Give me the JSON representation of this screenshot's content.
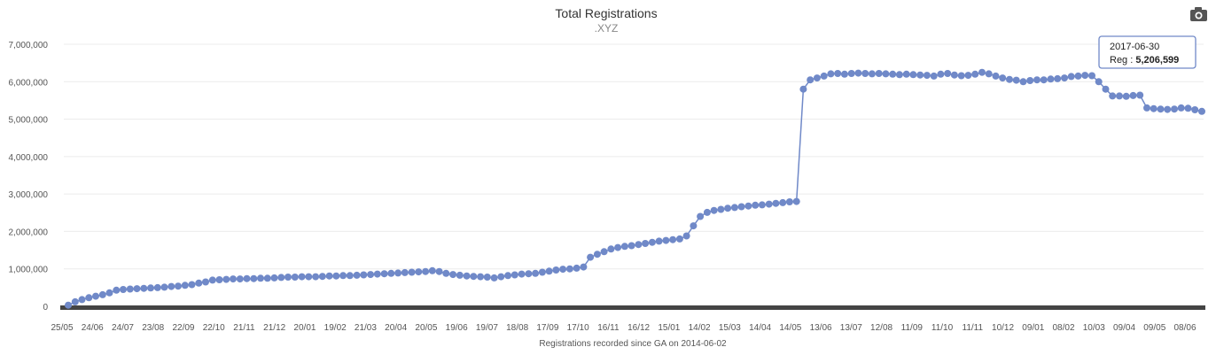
{
  "chart_data": {
    "type": "line",
    "title": "Total Registrations",
    "subtitle": ".XYZ",
    "xlabel": "Registrations recorded since GA on 2014-06-02",
    "ylabel": "",
    "ylim": [
      0,
      7000000
    ],
    "y_ticks": [
      "7,000,000",
      "6,000,000",
      "5,000,000",
      "4,000,000",
      "3,000,000",
      "2,000,000",
      "1,000,000",
      "0"
    ],
    "x_ticks": [
      "25/05",
      "24/06",
      "24/07",
      "23/08",
      "22/09",
      "22/10",
      "21/11",
      "21/12",
      "20/01",
      "19/02",
      "21/03",
      "20/04",
      "20/05",
      "19/06",
      "19/07",
      "18/08",
      "17/09",
      "17/10",
      "16/11",
      "16/12",
      "15/01",
      "14/02",
      "15/03",
      "14/04",
      "14/05",
      "13/06",
      "13/07",
      "12/08",
      "11/09",
      "11/10",
      "11/11",
      "10/12",
      "09/01",
      "08/02",
      "10/03",
      "09/04",
      "09/05",
      "08/06"
    ],
    "series": [
      {
        "name": "Reg",
        "color": "#7089c8",
        "values": [
          30000,
          120000,
          180000,
          230000,
          270000,
          310000,
          360000,
          430000,
          450000,
          460000,
          470000,
          480000,
          490000,
          500000,
          510000,
          530000,
          540000,
          560000,
          580000,
          620000,
          650000,
          700000,
          710000,
          720000,
          730000,
          730000,
          740000,
          740000,
          750000,
          750000,
          760000,
          770000,
          780000,
          780000,
          790000,
          790000,
          790000,
          800000,
          810000,
          810000,
          820000,
          820000,
          830000,
          840000,
          850000,
          860000,
          870000,
          880000,
          890000,
          900000,
          910000,
          920000,
          930000,
          950000,
          930000,
          880000,
          850000,
          830000,
          810000,
          800000,
          790000,
          780000,
          760000,
          790000,
          820000,
          840000,
          860000,
          870000,
          880000,
          910000,
          940000,
          970000,
          990000,
          1000000,
          1020000,
          1050000,
          1310000,
          1390000,
          1460000,
          1530000,
          1570000,
          1600000,
          1620000,
          1650000,
          1680000,
          1710000,
          1740000,
          1760000,
          1780000,
          1800000,
          1880000,
          2150000,
          2400000,
          2510000,
          2560000,
          2590000,
          2620000,
          2640000,
          2660000,
          2680000,
          2700000,
          2710000,
          2730000,
          2750000,
          2770000,
          2790000,
          2800000,
          5800000,
          6050000,
          6100000,
          6150000,
          6210000,
          6220000,
          6200000,
          6220000,
          6230000,
          6220000,
          6210000,
          6220000,
          6210000,
          6200000,
          6190000,
          6200000,
          6190000,
          6180000,
          6170000,
          6150000,
          6200000,
          6220000,
          6180000,
          6160000,
          6170000,
          6200000,
          6250000,
          6210000,
          6150000,
          6100000,
          6060000,
          6040000,
          6000000,
          6030000,
          6050000,
          6050000,
          6070000,
          6080000,
          6100000,
          6140000,
          6150000,
          6170000,
          6160000,
          6000000,
          5800000,
          5620000,
          5620000,
          5610000,
          5630000,
          5640000,
          5300000,
          5280000,
          5270000,
          5260000,
          5270000,
          5300000,
          5290000,
          5250000,
          5206599
        ]
      }
    ],
    "tooltip": {
      "date": "2017-06-30",
      "label": "Reg : ",
      "value": "5,206,599"
    }
  },
  "toolbar": {
    "icon": "camera-icon"
  }
}
